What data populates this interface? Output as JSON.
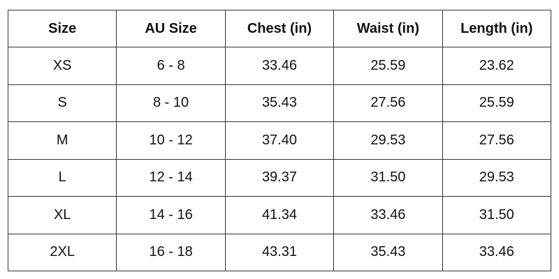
{
  "table": {
    "header": [
      "Size",
      "AU Size",
      "Chest (in)",
      "Waist (in)",
      "Length (in)"
    ],
    "rows": [
      [
        "XS",
        "6 - 8",
        "33.46",
        "25.59",
        "23.62"
      ],
      [
        "S",
        "8 - 10",
        "35.43",
        "27.56",
        "25.59"
      ],
      [
        "M",
        "10 - 12",
        "37.40",
        "29.53",
        "27.56"
      ],
      [
        "L",
        "12 - 14",
        "39.37",
        "31.50",
        "29.53"
      ],
      [
        "XL",
        "14 - 16",
        "41.34",
        "33.46",
        "31.50"
      ],
      [
        "2XL",
        "16 - 18",
        "43.31",
        "35.43",
        "33.46"
      ]
    ]
  }
}
